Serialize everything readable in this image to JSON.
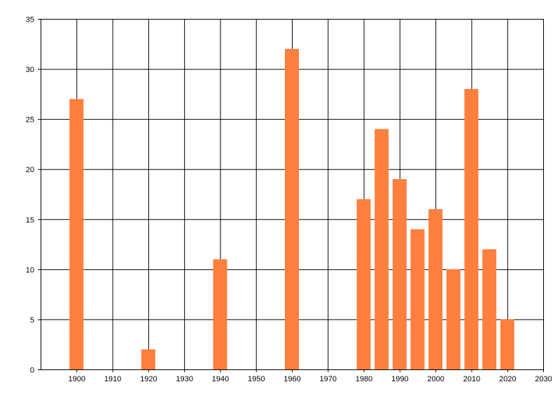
{
  "chart_data": {
    "type": "bar",
    "title": "",
    "xlabel": "",
    "ylabel": "",
    "x": [
      1900,
      1920,
      1940,
      1960,
      1980,
      1985,
      1990,
      1995,
      2000,
      2005,
      2010,
      2015,
      2020
    ],
    "values": [
      27,
      2,
      11,
      32,
      17,
      24,
      19,
      14,
      16,
      10,
      28,
      12,
      5
    ],
    "xlim": [
      1890,
      2030
    ],
    "ylim": [
      0,
      35
    ],
    "x_ticks": [
      1900,
      1910,
      1920,
      1930,
      1940,
      1950,
      1960,
      1970,
      1980,
      1990,
      2000,
      2010,
      2020,
      2030
    ],
    "y_ticks": [
      0,
      5,
      10,
      15,
      20,
      25,
      30,
      35
    ],
    "grid": true,
    "legend": "none",
    "bar_color": "#ff7f3f",
    "grid_color": "#000000"
  }
}
